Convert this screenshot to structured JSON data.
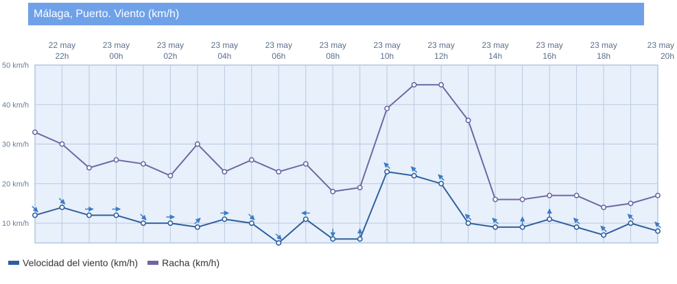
{
  "title": "Málaga, Puerto. Viento (km/h)",
  "colors": {
    "header_bg": "#6fa1e9",
    "plot_bg": "#e8f0fb",
    "wind": "#2e5f9e",
    "gust": "#6e67a2",
    "grid": "#b9c9df"
  },
  "chart_data": {
    "type": "line",
    "title": "Málaga, Puerto. Viento (km/h)",
    "ylim": [
      5,
      50
    ],
    "y_ticks": [
      "10 km/h",
      "20 km/h",
      "30 km/h",
      "40 km/h",
      "50 km/h"
    ],
    "x_tick_labels": [
      {
        "date": "22 may",
        "hour": "22h"
      },
      {
        "date": "23 may",
        "hour": "00h"
      },
      {
        "date": "23 may",
        "hour": "02h"
      },
      {
        "date": "23 may",
        "hour": "04h"
      },
      {
        "date": "23 may",
        "hour": "06h"
      },
      {
        "date": "23 may",
        "hour": "08h"
      },
      {
        "date": "23 may",
        "hour": "10h"
      },
      {
        "date": "23 may",
        "hour": "12h"
      },
      {
        "date": "23 may",
        "hour": "14h"
      },
      {
        "date": "23 may",
        "hour": "16h"
      },
      {
        "date": "23 may",
        "hour": "18h"
      },
      {
        "date": "23 may",
        "hour": "20h"
      }
    ],
    "x": [
      "21h",
      "22h",
      "23h",
      "00h",
      "01h",
      "02h",
      "03h",
      "04h",
      "05h",
      "06h",
      "07h",
      "08h",
      "09h",
      "10h",
      "11h",
      "12h",
      "13h",
      "14h",
      "15h",
      "16h",
      "17h",
      "18h",
      "19h",
      "20h"
    ],
    "series": [
      {
        "name": "Velocidad del viento (km/h)",
        "values": [
          12,
          14,
          12,
          12,
          10,
          10,
          9,
          11,
          10,
          5,
          11,
          6,
          6,
          23,
          22,
          20,
          10,
          9,
          9,
          11,
          9,
          7,
          10,
          8
        ],
        "arrow_direction": [
          "se",
          "se",
          "e",
          "e",
          "se",
          "e",
          "ne",
          "e",
          "se",
          "se",
          "w",
          "s",
          "n",
          "nw",
          "nw",
          "nw",
          "nw",
          "nw",
          "n",
          "n",
          "nw",
          "nw",
          "nw",
          "nw"
        ]
      },
      {
        "name": "Racha (km/h)",
        "values": [
          33,
          30,
          24,
          26,
          25,
          22,
          30,
          23,
          26,
          23,
          25,
          18,
          19,
          39,
          45,
          45,
          36,
          16,
          16,
          17,
          17,
          14,
          15,
          17
        ]
      }
    ],
    "grid": true,
    "legend": "bottom-left"
  }
}
